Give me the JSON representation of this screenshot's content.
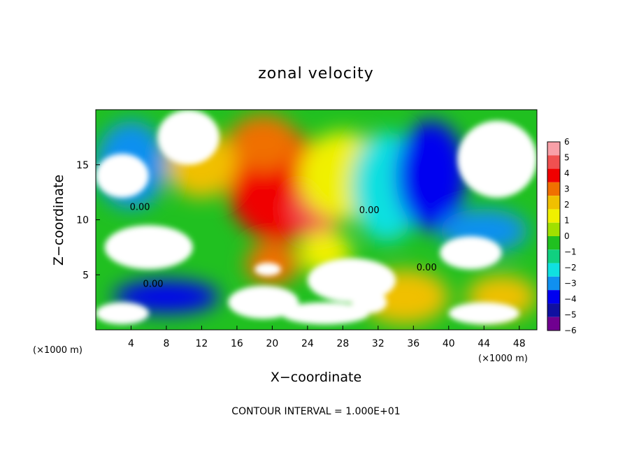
{
  "chart_data": {
    "type": "heatmap",
    "title": "zonal velocity",
    "xlabel": "X−coordinate",
    "ylabel": "Z−coordinate",
    "x_unit_left": "(×1000 m)",
    "x_unit_right": "(×1000 m)",
    "xlim": [
      0,
      50
    ],
    "ylim": [
      0,
      20
    ],
    "x_ticks": [
      "4",
      "8",
      "12",
      "16",
      "20",
      "24",
      "28",
      "32",
      "36",
      "40",
      "44",
      "48"
    ],
    "y_ticks": [
      "5",
      "10",
      "15"
    ],
    "x_tick_values": [
      4,
      8,
      12,
      16,
      20,
      24,
      28,
      32,
      36,
      40,
      44,
      48
    ],
    "y_tick_values": [
      5,
      10,
      15
    ],
    "contour_labels": [
      {
        "text": "0.00",
        "x": 5,
        "y": 10.9
      },
      {
        "text": "0.00",
        "x": 6.5,
        "y": 3.9
      },
      {
        "text": "0.00",
        "x": 31,
        "y": 10.6
      },
      {
        "text": "0.00",
        "x": 37.5,
        "y": 5.4
      }
    ],
    "colorbar": {
      "levels": [
        "6",
        "5",
        "4",
        "3",
        "2",
        "1",
        "0",
        "−1",
        "−2",
        "−3",
        "−4",
        "−5",
        "−6"
      ],
      "colors": [
        "#f8a0a8",
        "#f05050",
        "#f00000",
        "#f07000",
        "#f0c000",
        "#f0f000",
        "#a0e000",
        "#20c020",
        "#10d080",
        "#10e0e0",
        "#1090f0",
        "#0000f0",
        "#1010a0",
        "#700090"
      ],
      "range": [
        -6,
        6
      ],
      "position": "right"
    },
    "footer": "CONTOUR INTERVAL = 1.000E+01",
    "field_blobs": [
      {
        "x": 21,
        "y": 13,
        "rx": 6,
        "ry": 5,
        "value": 4
      },
      {
        "x": 25,
        "y": 11,
        "rx": 3,
        "ry": 2.5,
        "value": 5
      },
      {
        "x": 19,
        "y": 17,
        "rx": 4,
        "ry": 2.5,
        "value": 3
      },
      {
        "x": 12,
        "y": 15,
        "rx": 4,
        "ry": 3,
        "value": 2
      },
      {
        "x": 28,
        "y": 14,
        "rx": 5,
        "ry": 4,
        "value": 1
      },
      {
        "x": 33,
        "y": 13,
        "rx": 4,
        "ry": 5,
        "value": -2
      },
      {
        "x": 38,
        "y": 14,
        "rx": 4,
        "ry": 5,
        "value": -4
      },
      {
        "x": 4,
        "y": 15,
        "rx": 4,
        "ry": 4,
        "value": -3
      },
      {
        "x": 44,
        "y": 9,
        "rx": 5,
        "ry": 2,
        "value": -3
      },
      {
        "x": 35,
        "y": 3,
        "rx": 5,
        "ry": 2.5,
        "value": 2
      },
      {
        "x": 20,
        "y": 6,
        "rx": 3,
        "ry": 2,
        "value": 3
      },
      {
        "x": 8,
        "y": 3,
        "rx": 6,
        "ry": 1.5,
        "value": -4
      },
      {
        "x": 26,
        "y": 7,
        "rx": 3,
        "ry": 2,
        "value": 1
      },
      {
        "x": 46,
        "y": 3,
        "rx": 4,
        "ry": 2,
        "value": 2
      }
    ],
    "out_of_range_regions": [
      {
        "x": 10.5,
        "y": 17.5,
        "rx": 3.5,
        "ry": 2.5
      },
      {
        "x": 3,
        "y": 14,
        "rx": 3,
        "ry": 2
      },
      {
        "x": 45.5,
        "y": 15.5,
        "rx": 4.5,
        "ry": 3.5
      },
      {
        "x": 6,
        "y": 7.5,
        "rx": 5,
        "ry": 2
      },
      {
        "x": 29,
        "y": 4.5,
        "rx": 5,
        "ry": 2
      },
      {
        "x": 42.5,
        "y": 7,
        "rx": 3.5,
        "ry": 1.5
      },
      {
        "x": 3,
        "y": 1.5,
        "rx": 3,
        "ry": 1
      },
      {
        "x": 19,
        "y": 2.5,
        "rx": 4,
        "ry": 1.5
      },
      {
        "x": 26,
        "y": 1.5,
        "rx": 5,
        "ry": 1
      },
      {
        "x": 44,
        "y": 1.5,
        "rx": 4,
        "ry": 1
      },
      {
        "x": 19.5,
        "y": 5.5,
        "rx": 1.5,
        "ry": 0.6
      },
      {
        "x": 31,
        "y": 2.5,
        "rx": 2,
        "ry": 1
      }
    ]
  }
}
